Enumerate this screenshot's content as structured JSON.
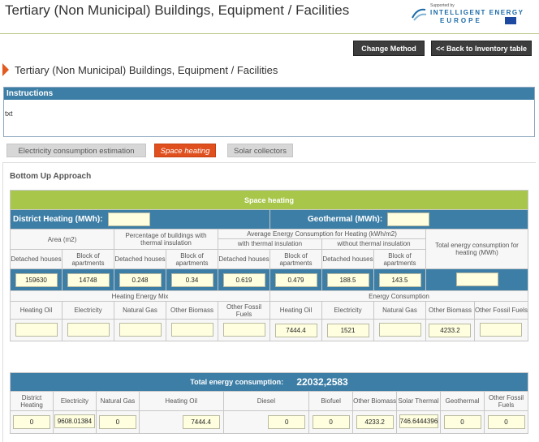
{
  "header": {
    "title": "Tertiary (Non Municipal) Buildings, Equipment / Facilities",
    "logo": {
      "supported_by": "Supported by",
      "line1": "INTELLIGENT ENERGY",
      "line2": "EUROPE"
    }
  },
  "buttons": {
    "change_method": "Change Method",
    "back": "<< Back to Inventory table"
  },
  "section_title": "Tertiary (Non Municipal) Buildings, Equipment / Facilities",
  "instructions": {
    "title": "Instructions",
    "body": "txt"
  },
  "tabs": [
    {
      "label": "Electricity consumption estimation",
      "active": false
    },
    {
      "label": "Space heating",
      "active": true
    },
    {
      "label": "Solar collectors",
      "active": false
    }
  ],
  "approach_title": "Bottom Up Approach",
  "space_heating": {
    "title": "Space heating",
    "district_heating_label": "District Heating (MWh):",
    "district_heating_value": "",
    "geothermal_label": "Geothermal (MWh):",
    "geothermal_value": "",
    "area_header": "Area (m2)",
    "pct_header": "Percentage of buildings with thermal insulation",
    "avg_header": "Average Energy Consumption for Heating (kWh/m2)",
    "with_insulation": "with thermal insulation",
    "without_insulation": "without thermal insulation",
    "total_header": "Total energy consumption for heating (MWh)",
    "col_detached": "Detached houses",
    "col_block": "Block of apartments",
    "values": [
      "159630",
      "14748",
      "0.248",
      "0.34",
      "0.619",
      "0.479",
      "188.5",
      "143.5",
      ""
    ],
    "mix_header": "Heating Energy Mix",
    "consumption_header": "Energy Consumption",
    "mix_cols": [
      "Heating Oil",
      "Electricity",
      "Natural Gas",
      "Other Biomass",
      "Other Fossil Fuels"
    ],
    "consumption_cols": [
      "Heating Oil",
      "Electricity",
      "Natural Gas",
      "Other Biomass",
      "Other Fossil Fuels"
    ],
    "mix_values": [
      "",
      "",
      "",
      "",
      ""
    ],
    "consumption_values": [
      "7444.4",
      "1521",
      "",
      "4233.2",
      ""
    ]
  },
  "total": {
    "label": "Total energy consumption:",
    "value": "22032,2583",
    "cols": [
      "District Heating",
      "Electricity",
      "Natural Gas",
      "Heating Oil",
      "Diesel",
      "Biofuel",
      "Other Biomass",
      "Solar Thermal",
      "Geothermal",
      "Other Fossil Fuels"
    ],
    "values": [
      "0",
      "9608.01384",
      "0",
      "7444.4",
      "0",
      "0",
      "4233.2",
      "746.6444396",
      "0",
      "0"
    ]
  },
  "colors": {
    "accent_orange": "#e0501f",
    "table_blue": "#3d7ea6",
    "table_green": "#a8c64a",
    "field_yellow": "#ffffe0"
  }
}
